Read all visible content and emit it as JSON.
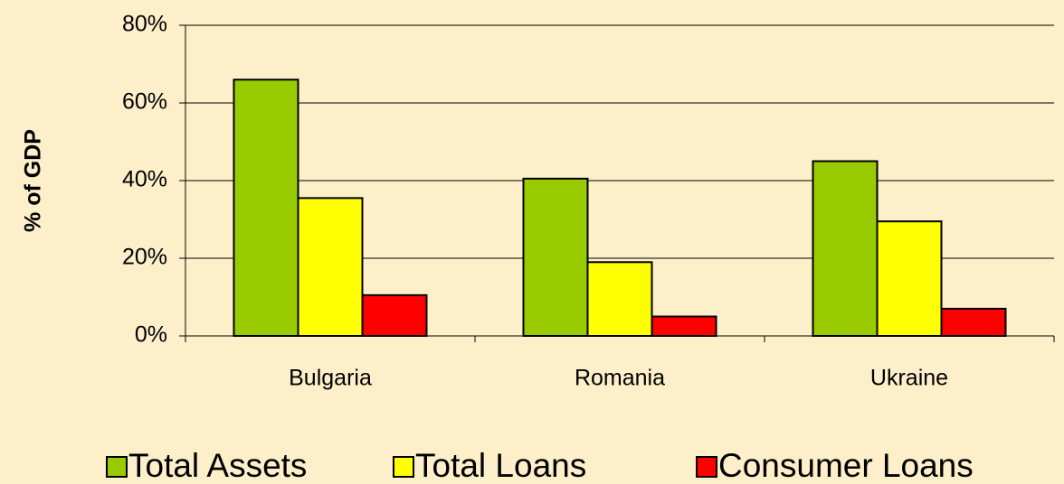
{
  "chart_data": {
    "type": "bar",
    "ylabel": "% of GDP",
    "categories": [
      "Bulgaria",
      "Romania",
      "Ukraine"
    ],
    "series": [
      {
        "name": "Total Assets",
        "color": "#99cc00",
        "values": [
          66,
          40.5,
          45
        ]
      },
      {
        "name": "Total Loans",
        "color": "#ffff00",
        "values": [
          35.5,
          19,
          29.5
        ]
      },
      {
        "name": "Consumer Loans",
        "color": "#ff0000",
        "values": [
          10.5,
          5,
          7
        ]
      }
    ],
    "ylim": [
      0,
      80
    ],
    "yticks": [
      {
        "value": 0,
        "label": "0%"
      },
      {
        "value": 20,
        "label": "20%"
      },
      {
        "value": 40,
        "label": "40%"
      },
      {
        "value": 60,
        "label": "60%"
      },
      {
        "value": 80,
        "label": "80%"
      }
    ],
    "grid": true,
    "legend": "bottom"
  }
}
